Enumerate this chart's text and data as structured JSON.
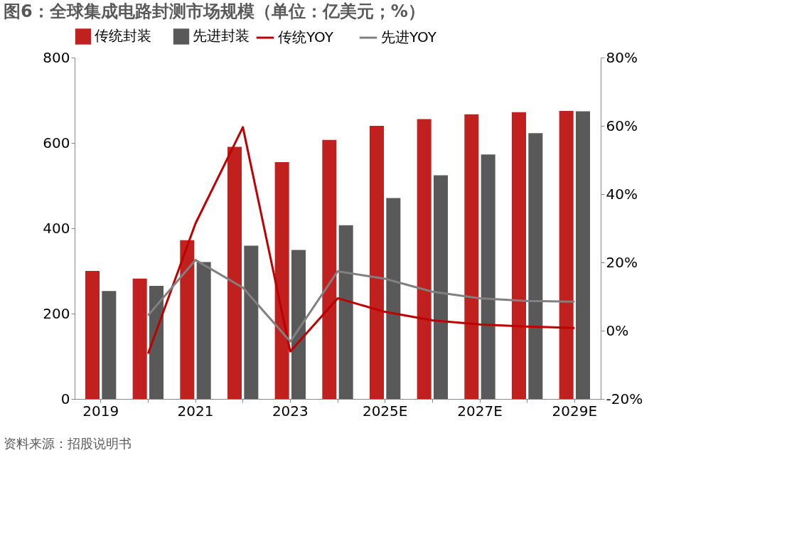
{
  "chart_data": {
    "type": "bar",
    "title": "图6：全球集成电路封测市场规模（单位：亿美元；%）",
    "categories": [
      "2019",
      null,
      "2021",
      null,
      "2023",
      null,
      "2025E",
      null,
      "2027E",
      null,
      "2029E"
    ],
    "series": [
      {
        "name": "传统封装",
        "color": "#c0201e",
        "values": [
          300,
          282,
          372,
          591,
          555,
          607,
          640,
          656,
          667,
          672,
          675
        ]
      },
      {
        "name": "先进封装",
        "color": "#595959",
        "values": [
          253,
          265,
          321,
          359,
          349,
          407,
          471,
          524,
          573,
          623,
          674
        ]
      },
      {
        "name": "传统YOY",
        "type": "line",
        "axis": "y2",
        "color": "#c00000",
        "values": [
          null,
          -6.7,
          31.4,
          59.6,
          -6.1,
          9.5,
          5.5,
          3.0,
          1.8,
          1.2,
          0.8
        ]
      },
      {
        "name": "先进YOY",
        "type": "line",
        "axis": "y2",
        "color": "#808080",
        "values": [
          null,
          4.5,
          20.7,
          12.6,
          -3.2,
          17.4,
          15.2,
          11.4,
          9.5,
          8.7,
          8.5
        ]
      }
    ],
    "ylim": [
      0,
      800
    ],
    "yticks": [
      0,
      200,
      400,
      600,
      800
    ],
    "y2lim": [
      -20,
      80
    ],
    "y2ticks": [
      {
        "value": -20,
        "label": "-20%"
      },
      {
        "value": 0,
        "label": "0%"
      },
      {
        "value": 20,
        "label": "20%"
      },
      {
        "value": 40,
        "label": "40%"
      },
      {
        "value": 60,
        "label": "60%"
      },
      {
        "value": 80,
        "label": "80%"
      }
    ],
    "legend": "top",
    "grid": false,
    "annotations": [
      "资料来源：招股说明书"
    ]
  }
}
